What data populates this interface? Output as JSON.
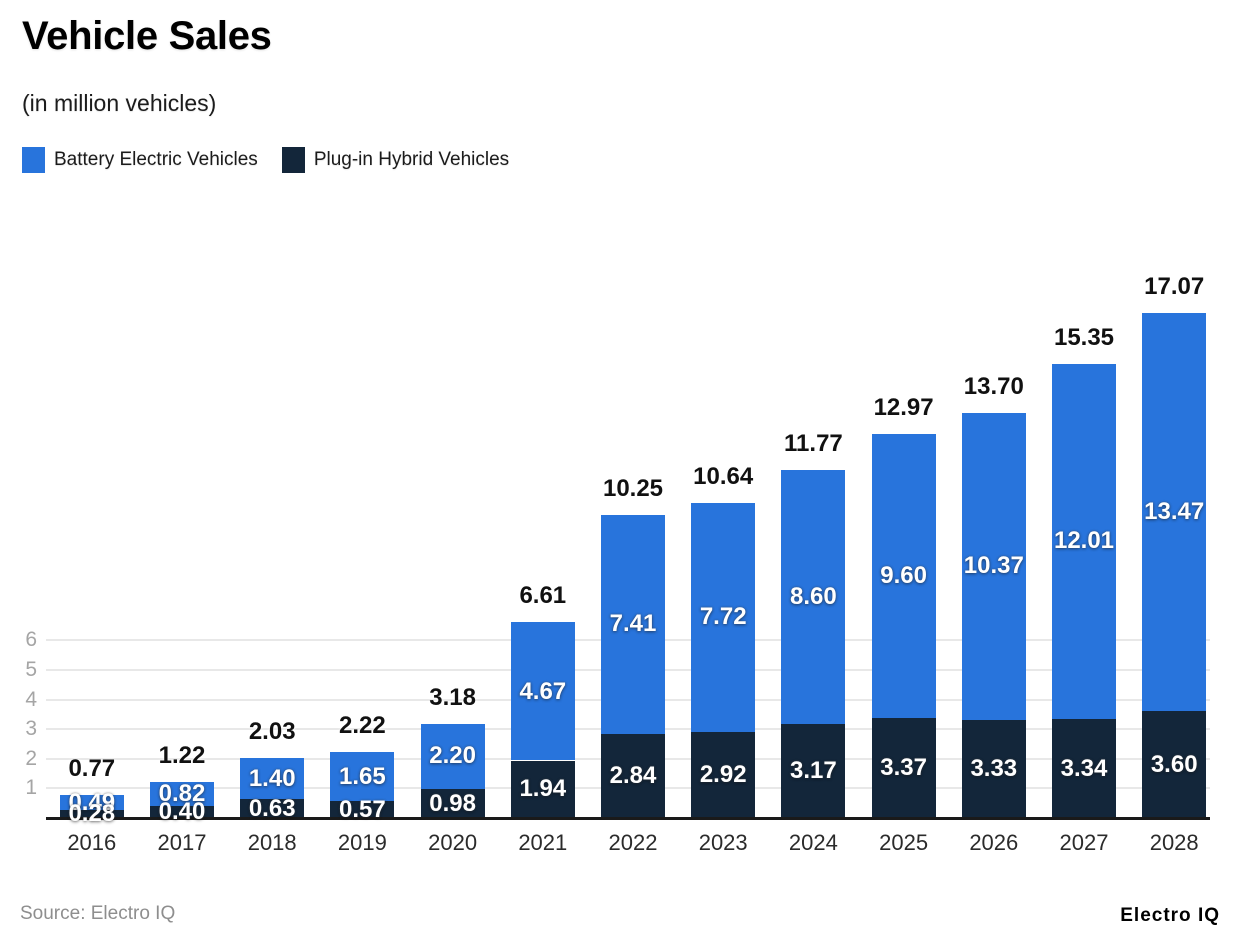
{
  "header": {
    "title": "Vehicle Sales",
    "subtitle": "(in million vehicles)"
  },
  "legend": {
    "items": [
      {
        "label": "Battery Electric Vehicles",
        "color": "#2874dc"
      },
      {
        "label": "Plug-in Hybrid Vehicles",
        "color": "#13263a"
      }
    ]
  },
  "footer": {
    "source": "Source: Electro IQ",
    "brand": "Electro IQ"
  },
  "chart_data": {
    "type": "bar",
    "stacked": true,
    "title": "Vehicle Sales",
    "subtitle": "(in million vehicles)",
    "units": "million vehicles",
    "legend_position": "top-left",
    "grid": "horizontal",
    "categories": [
      "2016",
      "2017",
      "2018",
      "2019",
      "2020",
      "2021",
      "2022",
      "2023",
      "2024",
      "2025",
      "2026",
      "2027",
      "2028"
    ],
    "series": [
      {
        "name": "Battery Electric Vehicles",
        "color": "#2874dc",
        "stack_position": "top",
        "values": [
          0.49,
          0.82,
          1.4,
          1.65,
          2.2,
          4.67,
          7.41,
          7.72,
          8.6,
          9.6,
          10.37,
          12.01,
          13.47
        ],
        "labels": [
          "0.49",
          "0.82",
          "1.40",
          "1.65",
          "2.20",
          "4.67",
          "7.41",
          "7.72",
          "8.60",
          "9.60",
          "10.37",
          "12.01",
          "13.47"
        ]
      },
      {
        "name": "Plug-in Hybrid Vehicles",
        "color": "#13263a",
        "stack_position": "bottom",
        "values": [
          0.28,
          0.4,
          0.63,
          0.57,
          0.98,
          1.94,
          2.84,
          2.92,
          3.17,
          3.37,
          3.33,
          3.34,
          3.6
        ],
        "labels": [
          "0.28",
          "0.40",
          "0.63",
          "0.57",
          "0.98",
          "1.94",
          "2.84",
          "2.92",
          "3.17",
          "3.37",
          "3.33",
          "3.34",
          "3.60"
        ]
      }
    ],
    "totals": {
      "values": [
        0.77,
        1.22,
        2.03,
        2.22,
        3.18,
        6.61,
        10.25,
        10.64,
        11.77,
        12.97,
        13.7,
        15.35,
        17.07
      ],
      "labels": [
        "0.77",
        "1.22",
        "2.03",
        "2.22",
        "3.18",
        "6.61",
        "10.25",
        "10.64",
        "11.77",
        "12.97",
        "13.70",
        "15.35",
        "17.07"
      ]
    },
    "y_axis": {
      "ticks": [
        1,
        2,
        3,
        4,
        5,
        6
      ],
      "tick_color": "#a5a5a5",
      "gridline_color": "#e8e8e8"
    },
    "x_axis": {
      "label_color": "#2b2b2b",
      "axis_color": "#1a1a1a"
    },
    "inside_label_color": "#ffffff",
    "total_label_color": "#111111"
  }
}
